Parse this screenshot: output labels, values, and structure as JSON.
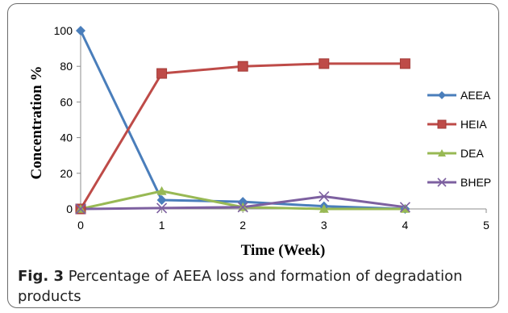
{
  "chart_data": {
    "type": "line",
    "xlabel": "Time (Week)",
    "ylabel": "Concentration   %",
    "x_ticks": [
      "0",
      "1",
      "2",
      "3",
      "4",
      "5"
    ],
    "y_ticks": [
      "0",
      "20",
      "40",
      "60",
      "80",
      "100"
    ],
    "xlim": [
      0,
      5
    ],
    "ylim": [
      0,
      100
    ],
    "grid": "none",
    "legend_position": "right",
    "x": [
      0,
      1,
      2,
      3,
      4
    ],
    "series": [
      {
        "name": "AEEA",
        "values": [
          100,
          5,
          4,
          1.5,
          0
        ],
        "color": "#4a7ebb",
        "marker": "diamond"
      },
      {
        "name": "HEIA",
        "values": [
          0,
          76,
          80,
          81.5,
          81.5
        ],
        "color": "#be4b48",
        "marker": "square"
      },
      {
        "name": "DEA",
        "values": [
          0,
          10,
          1,
          0,
          0
        ],
        "color": "#98b954",
        "marker": "triangle"
      },
      {
        "name": "BHEP",
        "values": [
          0,
          0.5,
          1,
          7,
          1
        ],
        "color": "#7d60a0",
        "marker": "x"
      }
    ]
  },
  "caption": {
    "label": "Fig. 3",
    "text": "Percentage of AEEA loss and formation of degradation products"
  }
}
